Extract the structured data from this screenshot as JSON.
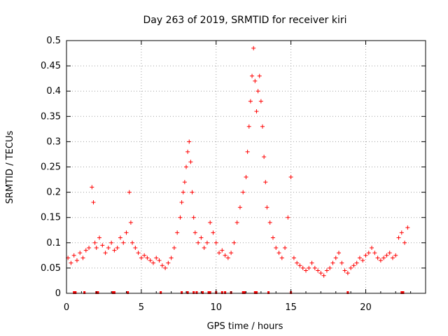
{
  "chart_data": {
    "type": "scatter",
    "title": "Day 263 of 2019, SRMTID for receiver kiri",
    "xlabel": "GPS time / hours",
    "ylabel": "SRMTID / TECUs",
    "xlim": [
      0,
      24
    ],
    "ylim": [
      0,
      0.5
    ],
    "xticks": [
      0,
      5,
      10,
      15,
      20
    ],
    "xtick_labels": [
      "0",
      "5",
      "10",
      "15",
      "20"
    ],
    "yticks": [
      0,
      0.05,
      0.1,
      0.15,
      0.2,
      0.25,
      0.3,
      0.35,
      0.4,
      0.45,
      0.5
    ],
    "ytick_labels": [
      "0",
      "0.05",
      "0.1",
      "0.15",
      "0.2",
      "0.25",
      "0.3",
      "0.35",
      "0.4",
      "0.45",
      "0.5"
    ],
    "grid": true,
    "marker": "+",
    "color": "#ff0000",
    "series": [
      {
        "name": "SRMTID",
        "x": [
          0.1,
          0.3,
          0.5,
          0.7,
          0.9,
          1.1,
          1.3,
          1.5,
          1.7,
          1.8,
          1.9,
          2.0,
          2.2,
          2.4,
          2.6,
          2.8,
          3.0,
          3.2,
          3.4,
          3.6,
          3.8,
          4.0,
          4.2,
          4.3,
          4.4,
          4.6,
          4.8,
          5.0,
          5.2,
          5.4,
          5.6,
          5.8,
          6.0,
          6.2,
          6.4,
          6.6,
          6.8,
          7.0,
          7.2,
          7.4,
          7.6,
          7.7,
          7.8,
          7.9,
          8.0,
          8.1,
          8.2,
          8.3,
          8.4,
          8.5,
          8.6,
          8.8,
          9.0,
          9.2,
          9.4,
          9.6,
          9.8,
          10.0,
          10.2,
          10.4,
          10.6,
          10.8,
          11.0,
          11.2,
          11.4,
          11.6,
          11.8,
          12.0,
          12.1,
          12.2,
          12.3,
          12.4,
          12.5,
          12.6,
          12.7,
          12.8,
          12.9,
          13.0,
          13.1,
          13.2,
          13.3,
          13.4,
          13.6,
          13.8,
          14.0,
          14.2,
          14.4,
          14.6,
          14.8,
          15.0,
          15.2,
          15.4,
          15.6,
          15.8,
          16.0,
          16.2,
          16.4,
          16.6,
          16.8,
          17.0,
          17.2,
          17.4,
          17.6,
          17.8,
          18.0,
          18.2,
          18.4,
          18.6,
          18.8,
          19.0,
          19.2,
          19.4,
          19.6,
          19.8,
          20.0,
          20.2,
          20.4,
          20.6,
          20.8,
          21.0,
          21.2,
          21.4,
          21.6,
          21.8,
          22.0,
          22.2,
          22.4,
          22.6,
          22.8
        ],
        "y": [
          0.07,
          0.06,
          0.075,
          0.065,
          0.08,
          0.07,
          0.085,
          0.09,
          0.21,
          0.18,
          0.1,
          0.09,
          0.11,
          0.095,
          0.08,
          0.09,
          0.1,
          0.085,
          0.09,
          0.11,
          0.1,
          0.12,
          0.2,
          0.14,
          0.1,
          0.09,
          0.08,
          0.07,
          0.075,
          0.07,
          0.065,
          0.06,
          0.07,
          0.065,
          0.055,
          0.05,
          0.06,
          0.07,
          0.09,
          0.12,
          0.15,
          0.18,
          0.2,
          0.22,
          0.25,
          0.28,
          0.3,
          0.26,
          0.2,
          0.15,
          0.12,
          0.1,
          0.11,
          0.09,
          0.1,
          0.14,
          0.12,
          0.1,
          0.08,
          0.085,
          0.075,
          0.07,
          0.08,
          0.1,
          0.14,
          0.17,
          0.2,
          0.23,
          0.28,
          0.33,
          0.38,
          0.43,
          0.485,
          0.42,
          0.36,
          0.4,
          0.43,
          0.38,
          0.33,
          0.27,
          0.22,
          0.17,
          0.14,
          0.11,
          0.09,
          0.08,
          0.07,
          0.09,
          0.15,
          0.23,
          0.07,
          0.06,
          0.055,
          0.05,
          0.045,
          0.05,
          0.06,
          0.05,
          0.045,
          0.04,
          0.035,
          0.045,
          0.05,
          0.06,
          0.07,
          0.08,
          0.06,
          0.045,
          0.04,
          0.05,
          0.055,
          0.06,
          0.07,
          0.065,
          0.075,
          0.08,
          0.09,
          0.08,
          0.07,
          0.065,
          0.07,
          0.075,
          0.08,
          0.07,
          0.075,
          0.11,
          0.12,
          0.1,
          0.13
        ]
      }
    ],
    "axis_ticks_bottom": [
      0.5,
      0.6,
      1.2,
      2.0,
      2.1,
      3.1,
      3.2,
      4.1,
      6.3,
      7.7,
      8.1,
      8.5,
      8.7,
      9.1,
      9.5,
      9.6,
      10.0,
      10.4,
      10.6,
      11.0,
      11.8,
      11.9,
      12.6,
      12.7,
      13.5,
      15.0,
      18.8,
      22.4,
      22.5
    ]
  }
}
